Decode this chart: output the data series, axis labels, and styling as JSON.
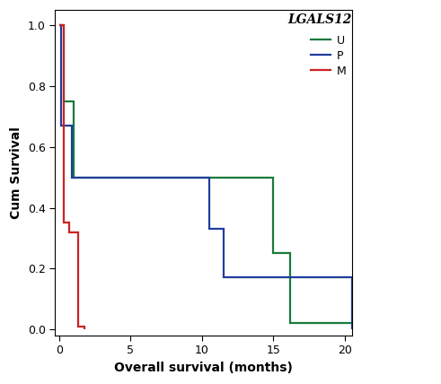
{
  "title": "LGALS12",
  "xlabel": "Overall survival (months)",
  "ylabel": "Cum Survival",
  "xlim": [
    -0.3,
    20.5
  ],
  "ylim": [
    -0.02,
    1.05
  ],
  "xticks": [
    0,
    5,
    10,
    15,
    20
  ],
  "yticks": [
    0.0,
    0.2,
    0.4,
    0.6,
    0.8,
    1.0
  ],
  "green_x": [
    0,
    0.35,
    0.35,
    1.0,
    1.0,
    10.0,
    10.0,
    15.0,
    15.0,
    16.2,
    16.2,
    20.5
  ],
  "green_y": [
    1.0,
    1.0,
    0.75,
    0.75,
    0.5,
    0.5,
    0.5,
    0.5,
    0.25,
    0.25,
    0.02,
    0.02
  ],
  "blue_x": [
    0,
    0.15,
    0.15,
    0.9,
    0.9,
    10.5,
    10.5,
    11.5,
    11.5,
    20.5,
    20.5
  ],
  "blue_y": [
    1.0,
    1.0,
    0.67,
    0.67,
    0.5,
    0.5,
    0.33,
    0.33,
    0.17,
    0.17,
    0.0
  ],
  "red_x": [
    0,
    0.3,
    0.3,
    0.7,
    0.7,
    1.3,
    1.3,
    1.8,
    1.8
  ],
  "red_y": [
    1.0,
    1.0,
    0.35,
    0.35,
    0.32,
    0.32,
    0.01,
    0.01,
    0.0
  ],
  "green_color": "#1a7a3c",
  "blue_color": "#1f3d9c",
  "red_color": "#cc2222",
  "legend_labels": [
    "U",
    "P",
    "M"
  ],
  "linewidth": 1.6,
  "background_color": "#ffffff",
  "title_style": "italic",
  "title_weight": "bold",
  "title_fontsize": 10,
  "label_fontsize": 10,
  "tick_fontsize": 9
}
